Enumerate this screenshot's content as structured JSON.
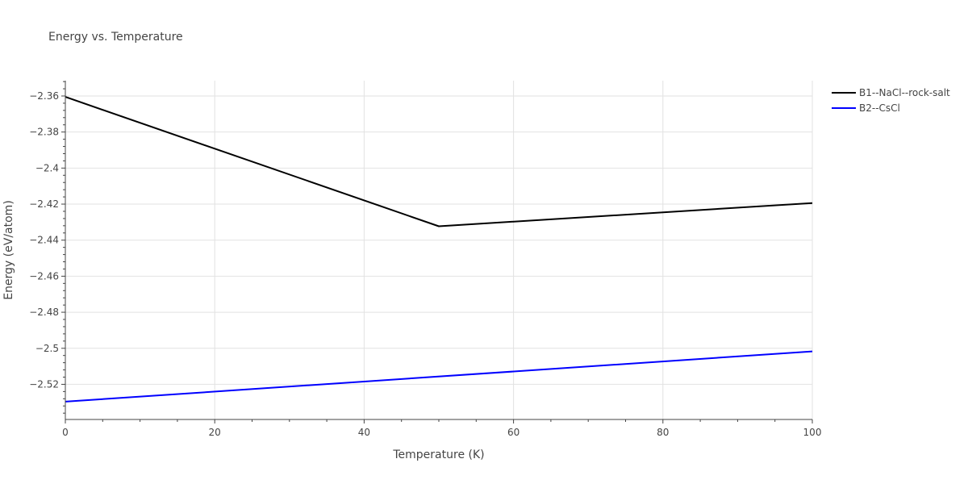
{
  "chart_data": {
    "type": "line",
    "title": "Energy vs. Temperature",
    "xlabel": "Temperature (K)",
    "ylabel": "Energy (eV/atom)",
    "xlim": [
      0,
      100
    ],
    "ylim": [
      -2.5395,
      -2.3515
    ],
    "x_ticks": [
      0,
      20,
      40,
      60,
      80,
      100
    ],
    "x_tick_labels": [
      "0",
      "20",
      "40",
      "60",
      "80",
      "100"
    ],
    "y_ticks": [
      -2.36,
      -2.38,
      -2.4,
      -2.42,
      -2.44,
      -2.46,
      -2.48,
      -2.5,
      -2.52
    ],
    "y_tick_labels": [
      "−2.36",
      "−2.38",
      "−2.4",
      "−2.42",
      "−2.44",
      "−2.46",
      "−2.48",
      "−2.5",
      "−2.52"
    ],
    "grid": true,
    "legend_position": "top-right, outside plot",
    "series": [
      {
        "name": "B1--NaCl--rock-salt",
        "color": "#000000",
        "x": [
          0,
          50,
          100
        ],
        "y": [
          -2.3605,
          -2.4323,
          -2.4194
        ]
      },
      {
        "name": "B2--CsCl",
        "color": "#0000ff",
        "x": [
          0,
          100
        ],
        "y": [
          -2.5296,
          -2.5017
        ]
      }
    ]
  }
}
